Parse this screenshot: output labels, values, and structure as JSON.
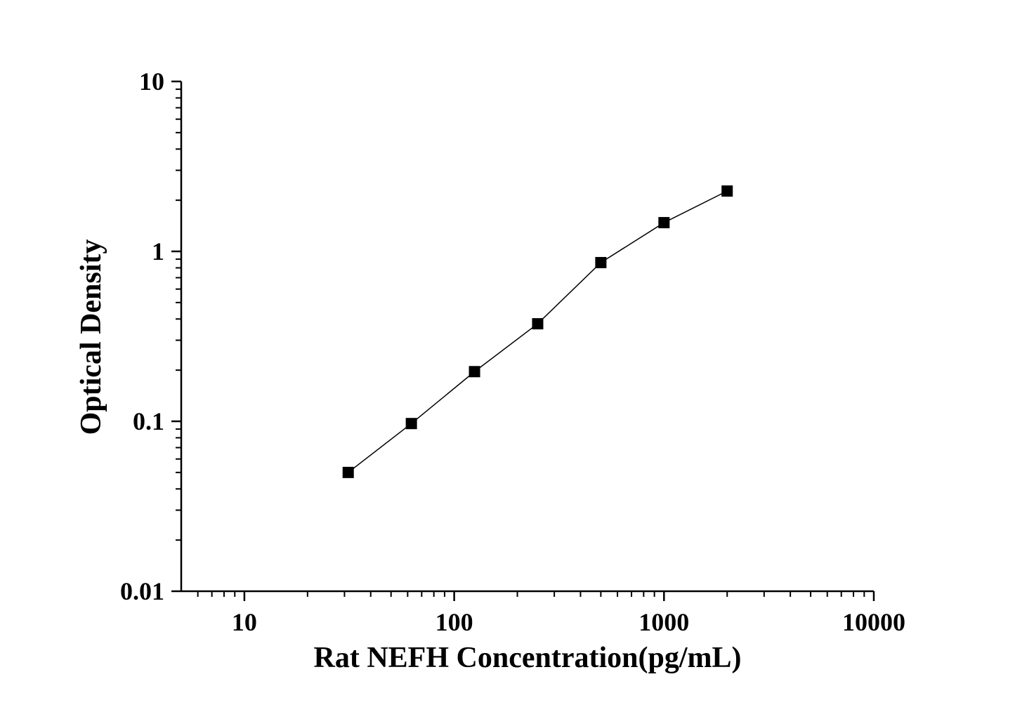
{
  "chart_data": {
    "type": "line",
    "x_label": "Rat NEFH Concentration(pg/mL)",
    "y_label": "Optical Density",
    "x": [
      31.25,
      62.5,
      125,
      250,
      500,
      1000,
      2000
    ],
    "series": [
      {
        "color": "#000000",
        "marker": "square",
        "values": [
          0.05,
          0.097,
          0.196,
          0.375,
          0.859,
          1.476,
          2.265
        ]
      }
    ],
    "x_log": true,
    "y_log": true,
    "xlim": [
      5,
      10000
    ],
    "ylim": [
      0.01,
      10
    ],
    "xticks": [
      10,
      100,
      1000,
      10000
    ],
    "yticks": [
      0.01,
      0.1,
      1,
      10
    ],
    "x_minor_ticks": [
      6,
      7,
      8,
      9,
      20,
      30,
      40,
      50,
      60,
      70,
      80,
      90,
      200,
      300,
      400,
      500,
      600,
      700,
      800,
      900,
      2000,
      3000,
      4000,
      5000,
      6000,
      7000,
      8000,
      9000
    ],
    "y_minor_ticks": [
      0.02,
      0.03,
      0.04,
      0.05,
      0.06,
      0.07,
      0.08,
      0.09,
      0.2,
      0.3,
      0.4,
      0.5,
      0.6,
      0.7,
      0.8,
      0.9,
      2,
      3,
      4,
      5,
      6,
      7,
      8,
      9
    ]
  }
}
